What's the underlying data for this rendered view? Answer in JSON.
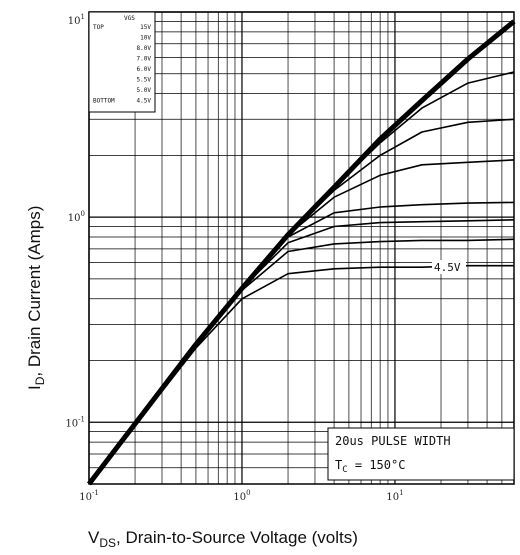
{
  "chart_data": {
    "type": "line",
    "title": "",
    "xlabel": {
      "prefix": "V",
      "sub": "DS",
      "rest": ", Drain-to-Source Voltage (volts)"
    },
    "ylabel": {
      "prefix": "I",
      "sub": "D",
      "rest": ", Drain Current (Amps)"
    },
    "xscale": "log",
    "yscale": "log",
    "xlim": [
      0.1,
      60
    ],
    "ylim": [
      0.05,
      10
    ],
    "grid": true,
    "x_ticks": [
      {
        "value": 0.1,
        "base": "10",
        "exp": "-1"
      },
      {
        "value": 1,
        "base": "10",
        "exp": "0"
      },
      {
        "value": 10,
        "base": "10",
        "exp": "1"
      }
    ],
    "y_ticks": [
      {
        "value": 0.1,
        "base": "10",
        "exp": "-1"
      },
      {
        "value": 1,
        "base": "10",
        "exp": "0"
      },
      {
        "value": 10,
        "base": "10",
        "exp": "1"
      }
    ],
    "legend": {
      "placement": "top-left",
      "header": "VGS",
      "rows": [
        {
          "label": "TOP",
          "value": "15V"
        },
        {
          "label": "",
          "value": "10V"
        },
        {
          "label": "",
          "value": "8.0V"
        },
        {
          "label": "",
          "value": "7.0V"
        },
        {
          "label": "",
          "value": "6.0V"
        },
        {
          "label": "",
          "value": "5.5V"
        },
        {
          "label": "",
          "value": "5.0V"
        },
        {
          "label": "BOTTOM",
          "value": "4.5V"
        }
      ]
    },
    "annotations": {
      "pulse": "20us PULSE WIDTH",
      "tc_prefix": "T",
      "tc_sub": "C",
      "tc_rest": " = 150°C",
      "curve_label": "4.5V"
    },
    "series": [
      {
        "values": [
          [
            0.1,
            0.05
          ],
          [
            0.5,
            0.24
          ],
          [
            1,
            0.45
          ],
          [
            2,
            0.82
          ],
          [
            4,
            1.4
          ],
          [
            8,
            2.4
          ],
          [
            15,
            3.7
          ],
          [
            30,
            5.9
          ],
          [
            60,
            9.0
          ]
        ]
      },
      {
        "values": [
          [
            0.1,
            0.05
          ],
          [
            0.5,
            0.24
          ],
          [
            1,
            0.45
          ],
          [
            2,
            0.82
          ],
          [
            4,
            1.4
          ],
          [
            8,
            2.3
          ],
          [
            15,
            3.4
          ],
          [
            30,
            4.5
          ],
          [
            60,
            5.1
          ]
        ]
      },
      {
        "values": [
          [
            0.1,
            0.05
          ],
          [
            0.5,
            0.24
          ],
          [
            1,
            0.45
          ],
          [
            2,
            0.82
          ],
          [
            4,
            1.35
          ],
          [
            8,
            2.0
          ],
          [
            15,
            2.6
          ],
          [
            30,
            2.9
          ],
          [
            60,
            3.0
          ]
        ]
      },
      {
        "values": [
          [
            0.1,
            0.05
          ],
          [
            0.5,
            0.24
          ],
          [
            1,
            0.45
          ],
          [
            2,
            0.82
          ],
          [
            4,
            1.25
          ],
          [
            8,
            1.6
          ],
          [
            15,
            1.8
          ],
          [
            30,
            1.85
          ],
          [
            60,
            1.9
          ]
        ]
      },
      {
        "values": [
          [
            0.1,
            0.05
          ],
          [
            0.5,
            0.24
          ],
          [
            1,
            0.45
          ],
          [
            2,
            0.8
          ],
          [
            4,
            1.05
          ],
          [
            8,
            1.12
          ],
          [
            15,
            1.15
          ],
          [
            30,
            1.17
          ],
          [
            60,
            1.18
          ]
        ]
      },
      {
        "values": [
          [
            0.1,
            0.05
          ],
          [
            0.5,
            0.24
          ],
          [
            1,
            0.45
          ],
          [
            2,
            0.75
          ],
          [
            4,
            0.9
          ],
          [
            8,
            0.94
          ],
          [
            15,
            0.95
          ],
          [
            30,
            0.96
          ],
          [
            60,
            0.97
          ]
        ]
      },
      {
        "values": [
          [
            0.1,
            0.05
          ],
          [
            0.5,
            0.24
          ],
          [
            1,
            0.44
          ],
          [
            2,
            0.68
          ],
          [
            4,
            0.74
          ],
          [
            8,
            0.76
          ],
          [
            15,
            0.77
          ],
          [
            30,
            0.77
          ],
          [
            60,
            0.78
          ]
        ]
      },
      {
        "values": [
          [
            0.1,
            0.05
          ],
          [
            0.5,
            0.23
          ],
          [
            1,
            0.4
          ],
          [
            2,
            0.53
          ],
          [
            4,
            0.56
          ],
          [
            8,
            0.57
          ],
          [
            15,
            0.57
          ],
          [
            30,
            0.58
          ],
          [
            60,
            0.58
          ]
        ]
      }
    ]
  }
}
